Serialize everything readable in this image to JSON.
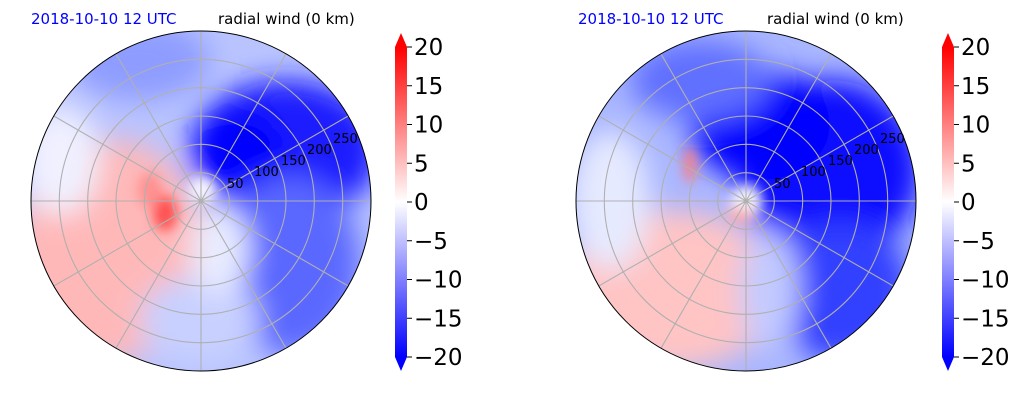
{
  "colors": {
    "date_title": "#0000ff",
    "neg": "#0000ff",
    "zero": "#ffffff",
    "pos": "#ff0000",
    "grid": "#b0b0b0"
  },
  "chart_data": [
    {
      "type": "heatmap",
      "projection": "polar",
      "title_left": "2018-10-10 12 UTC",
      "title_right": "radial wind (0 km)",
      "radial_ticks": [
        50,
        100,
        150,
        200,
        250
      ],
      "rlim": [
        0,
        300
      ],
      "angular_gridlines_deg": [
        0,
        30,
        60,
        90,
        120,
        150,
        180,
        210,
        240,
        270,
        300,
        330
      ],
      "grid": true,
      "colorbar": {
        "min": -20,
        "max": 20,
        "ticks": [
          20,
          15,
          10,
          5,
          0,
          -5,
          -10,
          -15,
          -20
        ],
        "tick_labels": [
          "20",
          "15",
          "10",
          "5",
          "0",
          "−5",
          "−10",
          "−15",
          "−20"
        ],
        "extend": "both",
        "cmap": "bwr"
      }
    },
    {
      "type": "heatmap",
      "projection": "polar",
      "title_left": "2018-10-10 12 UTC",
      "title_right": "radial wind (0 km)",
      "radial_ticks": [
        50,
        100,
        150,
        200,
        250
      ],
      "rlim": [
        0,
        300
      ],
      "angular_gridlines_deg": [
        0,
        30,
        60,
        90,
        120,
        150,
        180,
        210,
        240,
        270,
        300,
        330
      ],
      "grid": true,
      "colorbar": {
        "min": -20,
        "max": 20,
        "ticks": [
          20,
          15,
          10,
          5,
          0,
          -5,
          -10,
          -15,
          -20
        ],
        "tick_labels": [
          "20",
          "15",
          "10",
          "5",
          "0",
          "−5",
          "−10",
          "−15",
          "−20"
        ],
        "extend": "both",
        "cmap": "bwr"
      }
    }
  ]
}
